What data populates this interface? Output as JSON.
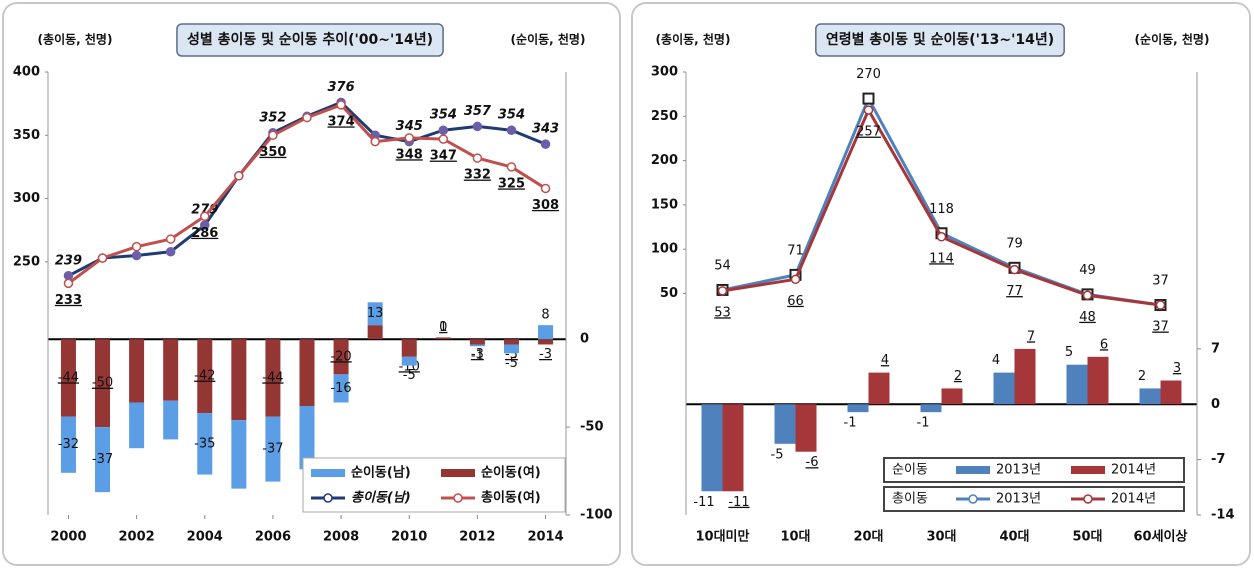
{
  "chart_data": [
    {
      "type": "combo",
      "unit_left": "(총이동, 천명)",
      "title": "성별 총이동 및 순이동 추이('00~'14년)",
      "unit_right": "(순이동, 천명)",
      "x": [
        2000,
        2001,
        2002,
        2003,
        2004,
        2005,
        2006,
        2007,
        2008,
        2009,
        2010,
        2011,
        2012,
        2013,
        2014
      ],
      "xlim": [
        1999.4,
        2014.6
      ],
      "xticks": [
        2000,
        2002,
        2004,
        2006,
        2008,
        2010,
        2012,
        2014
      ],
      "ylim": [
        50,
        400
      ],
      "yticks": [
        250,
        300,
        350,
        400
      ],
      "y2lim": [
        -100,
        152
      ],
      "y2ticks": [
        0,
        -50,
        -100
      ],
      "stacked": true,
      "series": [
        {
          "name": "순이동(남)",
          "kind": "bar",
          "axis": "y2",
          "color": "#5b9ee6",
          "values": [
            -32,
            -37,
            -26,
            -22,
            -35,
            -39,
            -37,
            -36,
            -16,
            13,
            -5,
            0,
            -1,
            -5,
            8
          ],
          "value_labels": [
            "-32",
            "-37",
            null,
            null,
            "-35",
            null,
            "-37",
            null,
            "-16",
            "13",
            "-5",
            "0",
            "-1",
            "-5",
            "8"
          ]
        },
        {
          "name": "순이동(여)",
          "kind": "bar",
          "axis": "y2",
          "color": "#943634",
          "values": [
            -44,
            -50,
            -36,
            -35,
            -42,
            -46,
            -44,
            -38,
            -20,
            8,
            -10,
            1,
            -3,
            -3,
            -3
          ],
          "value_labels": [
            "-44",
            "-50",
            null,
            null,
            "-42",
            null,
            "-44",
            null,
            "-20",
            "8",
            "-10",
            "1",
            "-3",
            "-3",
            "-3"
          ]
        },
        {
          "name": "총이동(남)",
          "kind": "line",
          "color": "#1f3b73",
          "values": [
            239,
            253,
            255,
            258,
            279,
            318,
            352,
            365,
            376,
            350,
            345,
            354,
            357,
            354,
            343
          ],
          "value_labels": [
            "239",
            null,
            null,
            null,
            "279",
            null,
            "352",
            null,
            "376",
            null,
            "345",
            "354",
            "357",
            "354",
            "343"
          ]
        },
        {
          "name": "총이동(여)",
          "kind": "line",
          "color": "#c0504d",
          "values": [
            233,
            253,
            262,
            268,
            286,
            318,
            350,
            364,
            374,
            345,
            348,
            347,
            332,
            325,
            308
          ],
          "value_labels": [
            "233",
            null,
            null,
            null,
            "286",
            null,
            "350",
            null,
            "374",
            null,
            "348",
            "347",
            "332",
            "325",
            "308"
          ]
        }
      ]
    },
    {
      "type": "combo",
      "unit_left": "(총이동, 천명)",
      "title": "연령별 총이동 및 순이동('13~'14년)",
      "unit_right": "(순이동, 천명)",
      "categories": [
        "10대미만",
        "10대",
        "20대",
        "30대",
        "40대",
        "50대",
        "60세이상"
      ],
      "ylim": [
        -200,
        300
      ],
      "yticks": [
        50,
        100,
        150,
        200,
        250,
        300
      ],
      "y2lim": [
        -14,
        42
      ],
      "y2ticks": [
        7,
        0,
        -7,
        -14
      ],
      "stacked": false,
      "legend_titles": {
        "bar": "순이동",
        "line": "총이동"
      },
      "series": [
        {
          "name": "2013년",
          "kind": "bar",
          "axis": "y2",
          "color": "#4f81bd",
          "values": [
            -11,
            -5,
            -1,
            -1,
            4,
            5,
            2
          ]
        },
        {
          "name": "2014년",
          "kind": "bar",
          "axis": "y2",
          "color": "#a5373a",
          "values": [
            -11,
            -6,
            4,
            2,
            7,
            6,
            3
          ]
        },
        {
          "name": "2013년",
          "kind": "line",
          "color": "#4f81bd",
          "values": [
            54,
            71,
            270,
            118,
            79,
            49,
            37
          ]
        },
        {
          "name": "2014년",
          "kind": "line",
          "color": "#a5373a",
          "values": [
            53,
            66,
            257,
            114,
            77,
            48,
            37
          ]
        }
      ]
    }
  ]
}
